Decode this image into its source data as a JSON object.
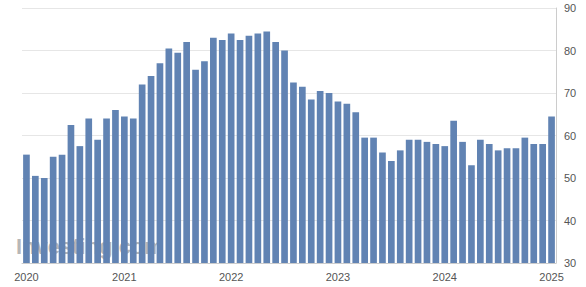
{
  "chart_data": {
    "type": "bar",
    "categories": [
      "2020",
      null,
      null,
      null,
      null,
      null,
      null,
      null,
      null,
      null,
      null,
      "2021",
      null,
      null,
      null,
      null,
      null,
      null,
      null,
      null,
      null,
      null,
      null,
      "2022",
      null,
      null,
      null,
      null,
      null,
      null,
      null,
      null,
      null,
      null,
      null,
      "2023",
      null,
      null,
      null,
      null,
      null,
      null,
      null,
      null,
      null,
      null,
      null,
      "2024",
      null,
      null,
      null,
      null,
      null,
      null,
      null,
      null,
      null,
      null,
      null,
      "2025"
    ],
    "values": [
      55.5,
      50.5,
      50,
      55,
      55.5,
      62.5,
      57.5,
      64,
      59,
      64,
      66,
      64.5,
      64,
      72,
      74,
      77,
      80.5,
      79.5,
      82,
      75.5,
      77.5,
      83,
      82.5,
      84,
      82.5,
      83.5,
      84,
      84.5,
      82,
      80,
      72.5,
      71.5,
      68.5,
      70.5,
      70,
      68,
      67.5,
      65.5,
      59.5,
      59.5,
      56,
      54,
      56.5,
      59,
      59,
      58.5,
      58,
      57.5,
      63.5,
      58.5,
      53,
      59,
      58,
      56.5,
      57,
      57,
      59.5,
      58,
      58,
      64.5
    ],
    "color": "#6183b3",
    "ylim": [
      30,
      90
    ],
    "yticks": [
      30,
      40,
      50,
      60,
      70,
      80,
      90
    ],
    "grid": true,
    "annotations": [
      "Investing.com"
    ]
  }
}
